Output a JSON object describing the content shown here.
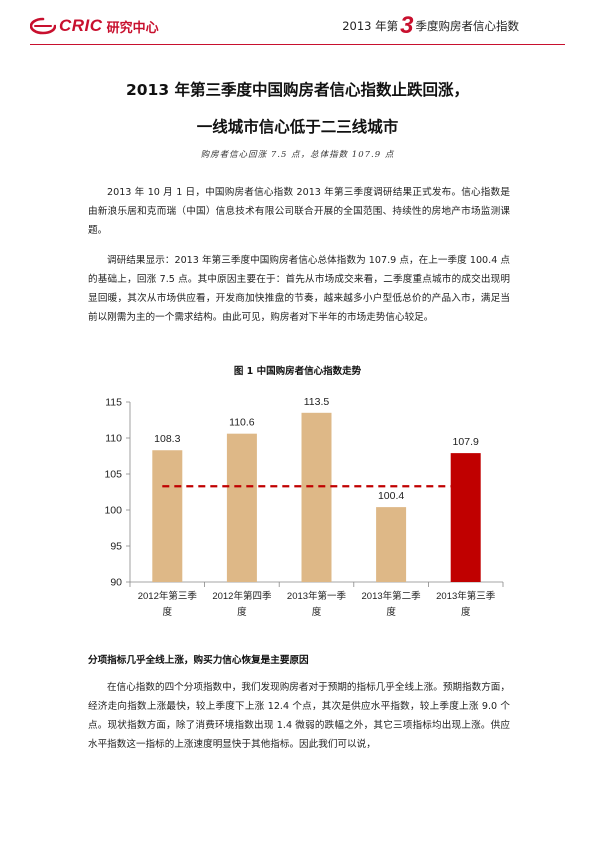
{
  "header": {
    "logo_text": "CRIC",
    "logo_sub": "研究中心",
    "right_prefix": "2013 年第",
    "right_number": "3",
    "right_suffix": "季度购房者信心指数"
  },
  "title_line1": "2013 年第三季度中国购房者信心指数止跌回涨，",
  "title_line2": "一线城市信心低于二三线城市",
  "subtitle": "购房者信心回涨 7.5 点，总体指数 107.9 点",
  "paragraph1": "2013 年 10 月 1 日，中国购房者信心指数 2013 年第三季度调研结果正式发布。信心指数是由新浪乐居和克而瑞（中国）信息技术有限公司联合开展的全国范围、持续性的房地产市场监测课题。",
  "paragraph2": "调研结果显示：2013 年第三季度中国购房者信心总体指数为 107.9 点，在上一季度 100.4 点的基础上，回涨 7.5 点。其中原因主要在于：首先从市场成交来看，二季度重点城市的成交出现明显回暖，其次从市场供应看，开发商加快推盘的节奏，越来越多小户型低总价的产品入市，满足当前以刚需为主的一个需求结构。由此可见，购房者对下半年的市场走势信心较足。",
  "figure_title": "图 1  中国购房者信心指数走势",
  "chart_data": {
    "type": "bar",
    "categories": [
      "2012年第三季度",
      "2012年第四季度",
      "2013年第一季度",
      "2013年第二季度",
      "2013年第三季度"
    ],
    "categories_line1": [
      "2012年第三季",
      "2012年第四季",
      "2013年第一季",
      "2013年第二季",
      "2013年第三季"
    ],
    "categories_line2": [
      "度",
      "度",
      "度",
      "度",
      "度"
    ],
    "values": [
      108.3,
      110.6,
      113.5,
      100.4,
      107.9
    ],
    "value_labels": [
      "108.3",
      "110.6",
      "113.5",
      "100.4",
      "107.9"
    ],
    "ylim": [
      90,
      115
    ],
    "yticks": [
      90,
      95,
      100,
      105,
      110,
      115
    ],
    "reference_line": 103.3,
    "colors": {
      "bar": "#deb887",
      "highlight": "#c00000",
      "reference": "#c00000"
    },
    "grid": false
  },
  "section_heading": "分项指标几乎全线上涨，购买力信心恢复是主要原因",
  "paragraph3": "在信心指数的四个分项指数中，我们发现购房者对于预期的指标几乎全线上涨。预期指数方面，经济走向指数上涨最快，较上季度下上涨 12.4 个点，其次是供应水平指数，较上季度上涨 9.0 个点。现状指数方面，除了消费环境指数出现 1.4 微弱的跌幅之外，其它三项指标均出现上涨。供应水平指数这一指标的上涨速度明显快于其他指标。因此我们可以说，"
}
